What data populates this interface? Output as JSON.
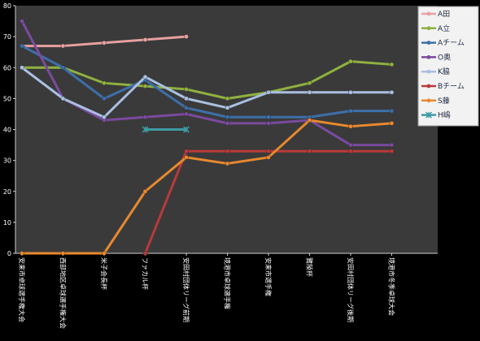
{
  "chart_data": {
    "type": "line",
    "ylim": [
      0,
      80
    ],
    "yticks": [
      0,
      10,
      20,
      30,
      40,
      50,
      60,
      70,
      80
    ],
    "grid": false,
    "legend_position": "top-right",
    "categories": [
      "安来市卓球選手権大会",
      "西部地区卓球選手権大会",
      "米子会長杯",
      "ファカル杯",
      "安田村団体リーグ前期",
      "境港市卓球選手権",
      "安来市選手権",
      "鷺陵杯",
      "安田村団体リーグ後期",
      "境港市冬季卓球大会"
    ],
    "series": [
      {
        "name": "A田",
        "color": "#e8a0a0",
        "marker": "circle",
        "values": [
          67,
          67,
          68,
          69,
          70,
          null,
          null,
          null,
          null,
          null
        ]
      },
      {
        "name": "A立",
        "color": "#8fb13f",
        "marker": "circle",
        "values": [
          60,
          60,
          55,
          54,
          53,
          50,
          52,
          55,
          62,
          61
        ]
      },
      {
        "name": "Aチーム",
        "color": "#3d6fa8",
        "marker": "circle",
        "values": [
          67,
          60,
          50,
          56,
          47,
          44,
          44,
          44,
          46,
          46
        ]
      },
      {
        "name": "O奥",
        "color": "#7b4a9e",
        "marker": "circle",
        "values": [
          75,
          50,
          43,
          44,
          45,
          42,
          42,
          43,
          35,
          35
        ]
      },
      {
        "name": "K脇",
        "color": "#a9bfe0",
        "marker": "circle",
        "values": [
          60,
          50,
          44,
          57,
          50,
          47,
          52,
          52,
          52,
          52
        ]
      },
      {
        "name": "Bチーム",
        "color": "#b83a3a",
        "marker": "circle",
        "values": [
          null,
          null,
          null,
          0,
          33,
          33,
          33,
          33,
          33,
          33
        ]
      },
      {
        "name": "S藤",
        "color": "#e8892e",
        "marker": "circle",
        "values": [
          0,
          0,
          0,
          20,
          31,
          29,
          31,
          43,
          41,
          42
        ]
      },
      {
        "name": "H嶋",
        "color": "#3f9aa3",
        "marker": "star",
        "values": [
          null,
          null,
          null,
          40,
          40,
          null,
          null,
          null,
          null,
          null
        ]
      }
    ]
  }
}
